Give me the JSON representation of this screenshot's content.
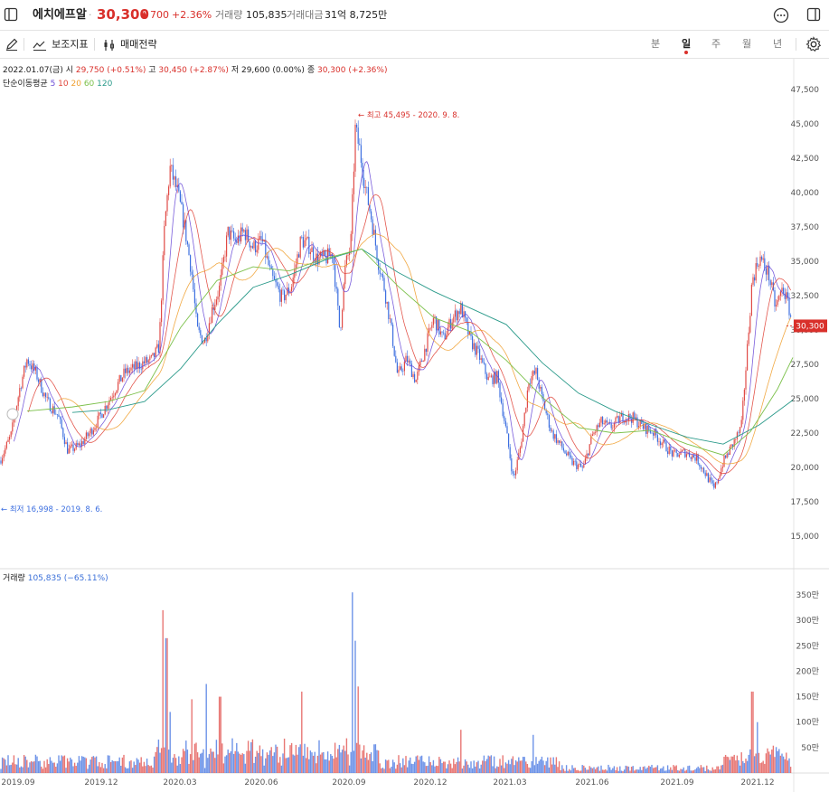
{
  "header": {
    "stock_name": "에치에프알",
    "sep": "·",
    "price": "30,300",
    "change_arrow": "▲",
    "change": "700",
    "change_pct": "+2.36%",
    "volume_label": "거래량",
    "volume": "105,835",
    "amount_label": "거래대금",
    "amount": "31억 8,725만"
  },
  "toolbar": {
    "indicator_label": "보조지표",
    "trade_label": "매매전략",
    "periods": [
      "분",
      "일",
      "주",
      "월",
      "년"
    ],
    "active_period": "일"
  },
  "ohlc": {
    "date": "2022.01.07(금)",
    "open_label": "시",
    "open": "29,750 (+0.51%)",
    "high_label": "고",
    "high": "30,450 (+2.87%)",
    "low_label": "저",
    "low": "29,600 (0.00%)",
    "close_label": "종",
    "close": "30,300 (+2.36%)"
  },
  "ma_legend": {
    "label": "단순이동평균",
    "items": [
      {
        "text": "5",
        "color": "#6b4dd8"
      },
      {
        "text": "10",
        "color": "#e0453a"
      },
      {
        "text": "20",
        "color": "#f0a030"
      },
      {
        "text": "60",
        "color": "#7bc04a"
      },
      {
        "text": "120",
        "color": "#2a9a8a"
      }
    ]
  },
  "volume_legend": {
    "label": "거래량",
    "value": "105,835 (−65.11%)"
  },
  "colors": {
    "up": "#e04a45",
    "down": "#3d6fe0",
    "accent": "#d9302b"
  },
  "chart_data": {
    "type": "candlestick",
    "price_ticks": [
      "47,500",
      "45,000",
      "42,500",
      "40,000",
      "37,500",
      "35,000",
      "32,500",
      "30,000",
      "27,500",
      "25,000",
      "22,500",
      "20,000",
      "17,500",
      "15,000"
    ],
    "price_tick_values": [
      47500,
      45000,
      42500,
      40000,
      37500,
      35000,
      32500,
      30000,
      27500,
      25000,
      22500,
      20000,
      17500,
      15000
    ],
    "price_range": [
      13000,
      49000
    ],
    "volume_ticks": [
      "350만",
      "300만",
      "250만",
      "200만",
      "150만",
      "100만",
      "50만"
    ],
    "volume_tick_values": [
      350,
      300,
      250,
      200,
      150,
      100,
      50
    ],
    "volume_unit": "만",
    "x_labels": [
      "2019.09",
      "2019.12",
      "2020.03",
      "2020.06",
      "2020.09",
      "2020.12",
      "2021.03",
      "2021.06",
      "2021.09",
      "2021.12"
    ],
    "current_price": "30,300",
    "current_price_value": 30300,
    "max_annotation": "← 최고 45,495 - 2020. 9. 8.",
    "max_value": 45495,
    "min_annotation": "← 최저 16,998 - 2019. 8. 6.",
    "min_value": 16998,
    "close_path": [
      [
        0,
        20500
      ],
      [
        12,
        22300
      ],
      [
        22,
        25800
      ],
      [
        30,
        27900
      ],
      [
        40,
        26800
      ],
      [
        52,
        24800
      ],
      [
        64,
        23800
      ],
      [
        75,
        21200
      ],
      [
        88,
        21600
      ],
      [
        98,
        22400
      ],
      [
        108,
        23400
      ],
      [
        118,
        24600
      ],
      [
        128,
        25800
      ],
      [
        138,
        26900
      ],
      [
        148,
        27200
      ],
      [
        158,
        27600
      ],
      [
        168,
        27800
      ],
      [
        176,
        28800
      ],
      [
        182,
        37500
      ],
      [
        188,
        41800
      ],
      [
        196,
        40100
      ],
      [
        204,
        37600
      ],
      [
        212,
        34200
      ],
      [
        218,
        30000
      ],
      [
        226,
        29100
      ],
      [
        235,
        31600
      ],
      [
        243,
        33100
      ],
      [
        252,
        37100
      ],
      [
        261,
        36400
      ],
      [
        270,
        37200
      ],
      [
        280,
        36000
      ],
      [
        290,
        36500
      ],
      [
        300,
        33900
      ],
      [
        312,
        32300
      ],
      [
        322,
        33100
      ],
      [
        333,
        36600
      ],
      [
        342,
        36100
      ],
      [
        350,
        35200
      ],
      [
        360,
        35200
      ],
      [
        368,
        35600
      ],
      [
        376,
        29800
      ],
      [
        382,
        34600
      ],
      [
        388,
        36200
      ],
      [
        393,
        44600
      ],
      [
        398,
        43100
      ],
      [
        404,
        40400
      ],
      [
        411,
        38100
      ],
      [
        418,
        35100
      ],
      [
        425,
        33100
      ],
      [
        432,
        30400
      ],
      [
        440,
        26600
      ],
      [
        450,
        27900
      ],
      [
        460,
        26300
      ],
      [
        470,
        28600
      ],
      [
        480,
        30900
      ],
      [
        490,
        29300
      ],
      [
        500,
        30800
      ],
      [
        510,
        31600
      ],
      [
        520,
        29300
      ],
      [
        530,
        28100
      ],
      [
        540,
        26400
      ],
      [
        550,
        26600
      ],
      [
        560,
        22600
      ],
      [
        568,
        19100
      ],
      [
        576,
        21600
      ],
      [
        585,
        26400
      ],
      [
        593,
        26900
      ],
      [
        600,
        24900
      ],
      [
        610,
        22600
      ],
      [
        620,
        21600
      ],
      [
        632,
        20400
      ],
      [
        645,
        19900
      ],
      [
        655,
        22300
      ],
      [
        665,
        23300
      ],
      [
        675,
        22900
      ],
      [
        688,
        23700
      ],
      [
        700,
        23600
      ],
      [
        712,
        22900
      ],
      [
        722,
        22600
      ],
      [
        735,
        21600
      ],
      [
        745,
        20900
      ],
      [
        758,
        21100
      ],
      [
        770,
        20700
      ],
      [
        780,
        19600
      ],
      [
        790,
        18400
      ],
      [
        800,
        20400
      ],
      [
        810,
        21600
      ],
      [
        820,
        22900
      ],
      [
        826,
        28100
      ],
      [
        832,
        33600
      ],
      [
        840,
        35300
      ],
      [
        850,
        34100
      ],
      [
        858,
        31600
      ],
      [
        866,
        33100
      ],
      [
        872,
        31800
      ],
      [
        877,
        30300
      ]
    ],
    "ma_lines": [
      {
        "name": "120",
        "color": "#2a9a8a",
        "points": [
          [
            80,
            24000
          ],
          [
            120,
            24200
          ],
          [
            160,
            24800
          ],
          [
            200,
            27200
          ],
          [
            240,
            30400
          ],
          [
            280,
            33100
          ],
          [
            320,
            34000
          ],
          [
            360,
            35100
          ],
          [
            400,
            35900
          ],
          [
            440,
            34200
          ],
          [
            480,
            32800
          ],
          [
            520,
            31600
          ],
          [
            560,
            30400
          ],
          [
            600,
            27600
          ],
          [
            640,
            25400
          ],
          [
            680,
            24100
          ],
          [
            720,
            23100
          ],
          [
            760,
            22200
          ],
          [
            800,
            21700
          ],
          [
            840,
            23100
          ],
          [
            877,
            24900
          ]
        ]
      },
      {
        "name": "60",
        "color": "#7bc04a",
        "points": [
          [
            30,
            24100
          ],
          [
            80,
            24400
          ],
          [
            120,
            24800
          ],
          [
            160,
            25600
          ],
          [
            200,
            30200
          ],
          [
            240,
            33600
          ],
          [
            280,
            34600
          ],
          [
            320,
            34300
          ],
          [
            360,
            35200
          ],
          [
            400,
            35900
          ],
          [
            440,
            33200
          ],
          [
            480,
            30900
          ],
          [
            520,
            29900
          ],
          [
            560,
            27800
          ],
          [
            600,
            25100
          ],
          [
            640,
            22900
          ],
          [
            680,
            22500
          ],
          [
            720,
            22700
          ],
          [
            760,
            21700
          ],
          [
            800,
            20900
          ],
          [
            830,
            22600
          ],
          [
            860,
            25700
          ],
          [
            877,
            28000
          ]
        ]
      }
    ]
  }
}
